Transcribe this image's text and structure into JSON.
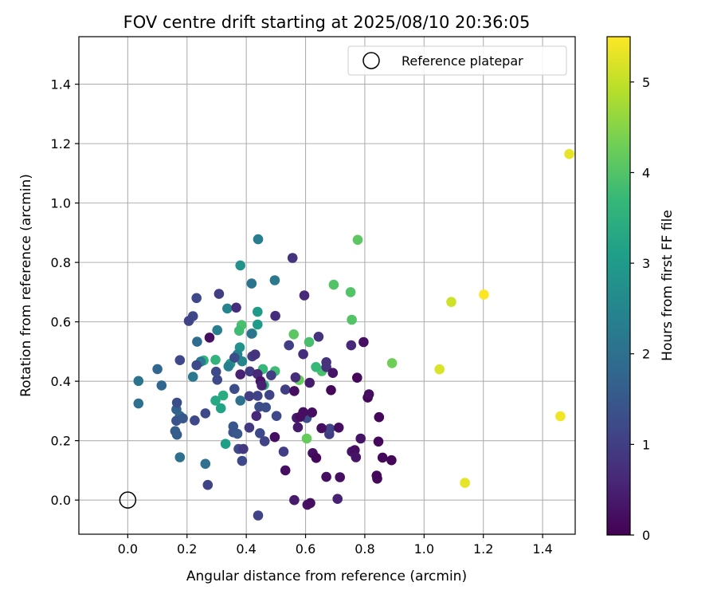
{
  "chart_data": {
    "type": "scatter",
    "title": "FOV centre drift starting at 2025/08/10 20:36:05",
    "xlabel": "Angular distance from reference (arcmin)",
    "ylabel": "Rotation from reference (arcmin)",
    "xlim": [
      -0.165,
      1.51
    ],
    "ylim": [
      -0.115,
      1.56
    ],
    "grid": true,
    "x_ticks": [
      0.0,
      0.2,
      0.4,
      0.6,
      0.8,
      1.0,
      1.2,
      1.4
    ],
    "x_tick_labels": [
      "0.0",
      "0.2",
      "0.4",
      "0.6",
      "0.8",
      "1.0",
      "1.2",
      "1.4"
    ],
    "y_ticks": [
      0.0,
      0.2,
      0.4,
      0.6,
      0.8,
      1.0,
      1.2,
      1.4
    ],
    "y_tick_labels": [
      "0.0",
      "0.2",
      "0.4",
      "0.6",
      "0.8",
      "1.0",
      "1.2",
      "1.4"
    ],
    "colorbar": {
      "label": "Hours from first FF file",
      "colormap": "viridis",
      "range": [
        0,
        5.5
      ],
      "ticks": [
        0,
        1,
        2,
        3,
        4,
        5
      ],
      "tick_labels": [
        "0",
        "1",
        "2",
        "3",
        "4",
        "5"
      ]
    },
    "legend": {
      "position": "top-right",
      "entries": [
        {
          "label": "Reference platepar",
          "marker": "open-circle"
        }
      ]
    },
    "reference_point": {
      "x": 0.0,
      "y": 0.0,
      "label": "Reference platepar"
    },
    "series": [
      {
        "points": [
          [
            1.49,
            1.165,
            5.3
          ],
          [
            1.46,
            0.282,
            5.4
          ],
          [
            1.202,
            0.692,
            5.5
          ],
          [
            1.138,
            0.058,
            5.3
          ],
          [
            1.092,
            0.667,
            5.1
          ],
          [
            1.052,
            0.44,
            5.2
          ],
          [
            0.892,
            0.461,
            4.3
          ],
          [
            0.776,
            0.876,
            4.1
          ],
          [
            0.752,
            0.7,
            4.0
          ],
          [
            0.756,
            0.607,
            4.0
          ],
          [
            0.695,
            0.725,
            4.0
          ],
          [
            0.612,
            0.532,
            3.9
          ],
          [
            0.56,
            0.558,
            4.1
          ],
          [
            0.578,
            0.404,
            4.2
          ],
          [
            0.604,
            0.207,
            4.2
          ],
          [
            0.655,
            0.434,
            3.9
          ],
          [
            0.635,
            0.448,
            3.7
          ],
          [
            0.497,
            0.434,
            3.8
          ],
          [
            0.456,
            0.441,
            3.7
          ],
          [
            0.46,
            0.387,
            3.6
          ],
          [
            0.384,
            0.589,
            3.9
          ],
          [
            0.42,
            0.561,
            3.7
          ],
          [
            0.376,
            0.57,
            3.8
          ],
          [
            0.256,
            0.47,
            3.6
          ],
          [
            0.296,
            0.472,
            3.6
          ],
          [
            0.322,
            0.352,
            3.4
          ],
          [
            0.314,
            0.309,
            3.2
          ],
          [
            0.33,
            0.189,
            3.1
          ],
          [
            0.296,
            0.335,
            3.3
          ],
          [
            0.346,
            0.459,
            3.1
          ],
          [
            0.438,
            0.634,
            3.0
          ],
          [
            0.438,
            0.591,
            3.0
          ],
          [
            0.38,
            0.79,
            2.8
          ],
          [
            0.378,
            0.514,
            2.8
          ],
          [
            0.336,
            0.645,
            2.5
          ],
          [
            0.37,
            0.49,
            2.5
          ],
          [
            0.34,
            0.45,
            2.4
          ],
          [
            0.386,
            0.467,
            2.5
          ],
          [
            0.302,
            0.572,
            2.3
          ],
          [
            0.246,
            0.466,
            2.2
          ],
          [
            0.22,
            0.415,
            2.2
          ],
          [
            0.44,
            0.878,
            2.3
          ],
          [
            0.496,
            0.74,
            2.2
          ],
          [
            0.418,
            0.729,
            2.1
          ],
          [
            0.418,
            0.56,
            2.1
          ],
          [
            0.38,
            0.335,
            2.0
          ],
          [
            0.036,
            0.401,
            2.1
          ],
          [
            0.036,
            0.325,
            2.0
          ],
          [
            0.1,
            0.441,
            1.8
          ],
          [
            0.114,
            0.386,
            1.8
          ],
          [
            0.176,
            0.144,
            2.0
          ],
          [
            0.262,
            0.122,
            2.0
          ],
          [
            0.234,
            0.533,
            1.9
          ],
          [
            0.176,
            0.283,
            1.9
          ],
          [
            0.164,
            0.305,
            1.7
          ],
          [
            0.16,
            0.232,
            1.6
          ],
          [
            0.166,
            0.22,
            1.6
          ],
          [
            0.164,
            0.267,
            1.4
          ],
          [
            0.186,
            0.275,
            1.5
          ],
          [
            0.166,
            0.328,
            1.3
          ],
          [
            0.232,
            0.454,
            1.2
          ],
          [
            0.302,
            0.405,
            1.2
          ],
          [
            0.298,
            0.432,
            1.2
          ],
          [
            0.232,
            0.68,
            1.2
          ],
          [
            0.22,
            0.619,
            1.2
          ],
          [
            0.206,
            0.603,
            1.1
          ],
          [
            0.176,
            0.471,
            1.2
          ],
          [
            0.226,
            0.268,
            1.2
          ],
          [
            0.262,
            0.292,
            1.2
          ],
          [
            0.27,
            0.051,
            1.1
          ],
          [
            0.308,
            0.694,
            1.0
          ],
          [
            0.36,
            0.479,
            1.3
          ],
          [
            0.36,
            0.374,
            1.3
          ],
          [
            0.356,
            0.248,
            1.5
          ],
          [
            0.356,
            0.228,
            1.4
          ],
          [
            0.37,
            0.223,
            1.5
          ],
          [
            0.386,
            0.132,
            1.2
          ],
          [
            0.374,
            0.172,
            1.2
          ],
          [
            0.39,
            0.172,
            0.9
          ],
          [
            0.41,
            0.244,
            0.9
          ],
          [
            0.41,
            0.35,
            1.0
          ],
          [
            0.412,
            0.433,
            0.9
          ],
          [
            0.42,
            0.484,
            1.0
          ],
          [
            0.438,
            0.351,
            1.1
          ],
          [
            0.444,
            0.314,
            1.3
          ],
          [
            0.466,
            0.312,
            1.3
          ],
          [
            0.478,
            0.354,
            1.1
          ],
          [
            0.446,
            0.225,
            1.2
          ],
          [
            0.462,
            0.198,
            1.1
          ],
          [
            0.44,
            -0.052,
            1.1
          ],
          [
            0.43,
            0.49,
            0.8
          ],
          [
            0.498,
            0.62,
            0.7
          ],
          [
            0.502,
            0.283,
            1.2
          ],
          [
            0.484,
            0.42,
            1.0
          ],
          [
            0.526,
            0.163,
            1.0
          ],
          [
            0.532,
            0.372,
            1.0
          ],
          [
            0.544,
            0.521,
            1.0
          ],
          [
            0.556,
            0.815,
            0.8
          ],
          [
            0.566,
            0.413,
            0.7
          ],
          [
            0.592,
            0.491,
            0.7
          ],
          [
            0.596,
            0.689,
            0.6
          ],
          [
            0.604,
            0.276,
            1.3
          ],
          [
            0.644,
            0.55,
            0.8
          ],
          [
            0.67,
            0.464,
            0.8
          ],
          [
            0.67,
            0.448,
            0.8
          ],
          [
            0.68,
            0.222,
            1.0
          ],
          [
            0.682,
            0.24,
            1.1
          ],
          [
            0.754,
            0.521,
            0.6
          ],
          [
            0.366,
            0.648,
            0.7
          ],
          [
            0.276,
            0.547,
            0.2
          ],
          [
            0.38,
            0.423,
            0.5
          ],
          [
            0.434,
            0.283,
            0.6
          ],
          [
            0.438,
            0.424,
            0.6
          ],
          [
            0.448,
            0.4,
            0.3
          ],
          [
            0.452,
            0.386,
            0.5
          ],
          [
            0.496,
            0.212,
            0.2
          ],
          [
            0.532,
            0.1,
            0.2
          ],
          [
            0.562,
            0.0,
            0.4
          ],
          [
            0.562,
            0.367,
            0.2
          ],
          [
            0.57,
            0.277,
            0.4
          ],
          [
            0.574,
            0.245,
            0.4
          ],
          [
            0.582,
            0.28,
            0.2
          ],
          [
            0.592,
            0.296,
            0.2
          ],
          [
            0.606,
            -0.016,
            0.3
          ],
          [
            0.616,
            -0.01,
            0.2
          ],
          [
            0.614,
            0.395,
            0.4
          ],
          [
            0.622,
            0.295,
            0.2
          ],
          [
            0.624,
            0.158,
            0.2
          ],
          [
            0.636,
            0.142,
            0.1
          ],
          [
            0.654,
            0.242,
            0.2
          ],
          [
            0.67,
            0.078,
            0.2
          ],
          [
            0.686,
            0.37,
            0.1
          ],
          [
            0.692,
            0.428,
            0.3
          ],
          [
            0.708,
            0.004,
            0.5
          ],
          [
            0.712,
            0.244,
            0.2
          ],
          [
            0.716,
            0.077,
            0.2
          ],
          [
            0.756,
            0.163,
            0.3
          ],
          [
            0.766,
            0.168,
            0.2
          ],
          [
            0.77,
            0.144,
            0.3
          ],
          [
            0.774,
            0.412,
            0.1
          ],
          [
            0.786,
            0.207,
            0.3
          ],
          [
            0.796,
            0.532,
            0.2
          ],
          [
            0.81,
            0.345,
            0.1
          ],
          [
            0.814,
            0.356,
            0.2
          ],
          [
            0.84,
            0.082,
            0.1
          ],
          [
            0.842,
            0.072,
            0.1
          ],
          [
            0.846,
            0.197,
            0.1
          ],
          [
            0.848,
            0.279,
            0.1
          ],
          [
            0.86,
            0.143,
            0.1
          ],
          [
            0.89,
            0.134,
            0.1
          ]
        ]
      }
    ]
  }
}
